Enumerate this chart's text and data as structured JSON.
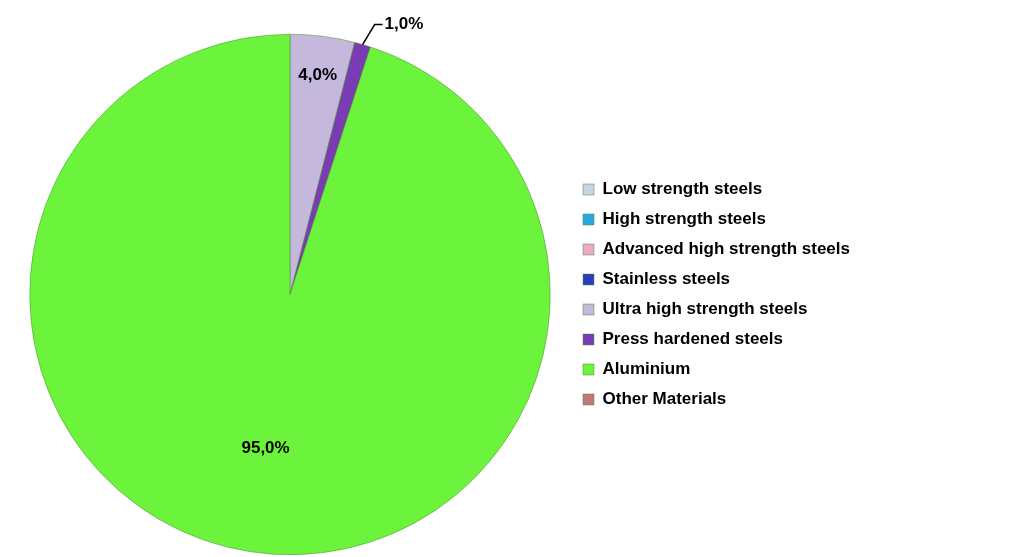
{
  "chart_data": {
    "type": "pie",
    "categories": [
      "Low strength steels",
      "High strength steels",
      "Advanced high strength steels",
      "Stainless steels",
      "Ultra high strength steels",
      "Press hardened steels",
      "Aluminium",
      "Other Materials"
    ],
    "values": [
      0,
      0,
      0,
      0,
      4,
      1,
      95,
      0
    ],
    "colors": [
      "#c8d4e6",
      "#2aa6e0",
      "#f0a8c8",
      "#2b3cc0",
      "#c4b8dc",
      "#7a3cb4",
      "#6cf43c",
      "#c07878"
    ],
    "value_labels": [
      null,
      null,
      null,
      null,
      "4,0%",
      "1,0%",
      "95,0%",
      null
    ],
    "legend": "right"
  }
}
